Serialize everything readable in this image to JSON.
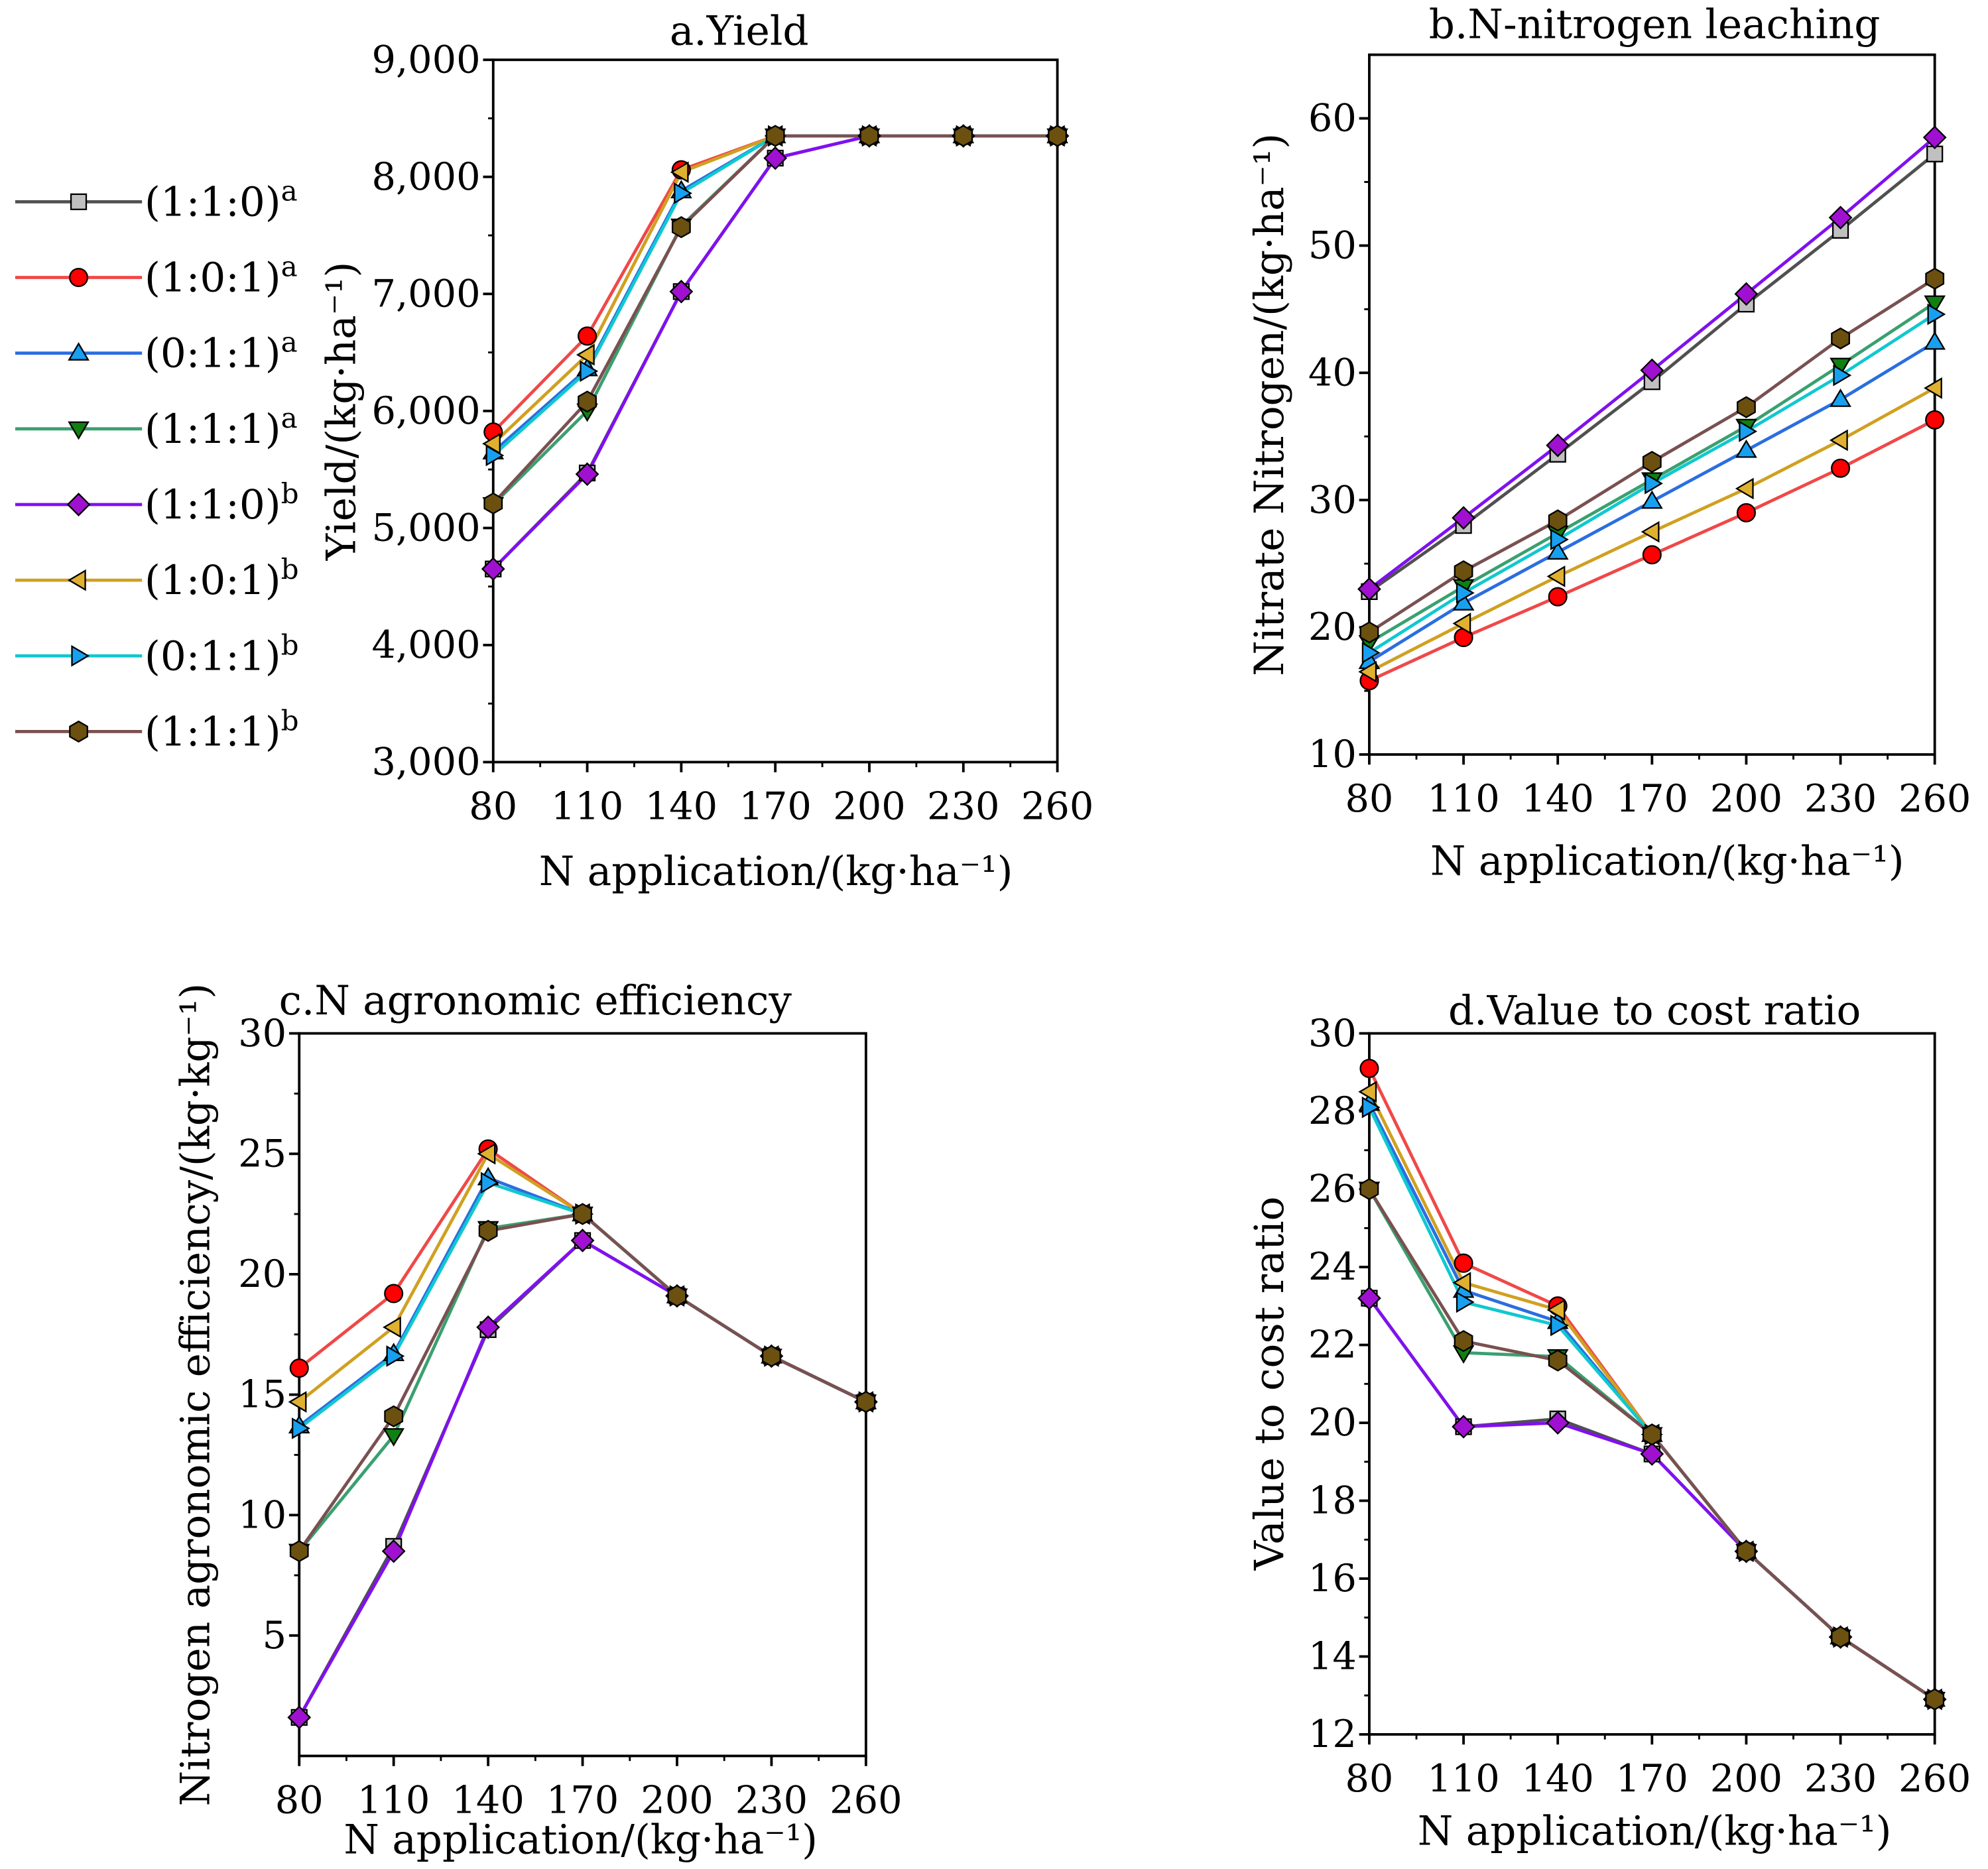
{
  "series_styles": [
    {
      "name": "(1:1:0)",
      "sup": "a",
      "marker": "square",
      "fill": "#c0c0c0",
      "line": "#505050"
    },
    {
      "name": "(1:0:1)",
      "sup": "a",
      "marker": "circle",
      "fill": "#ff0000",
      "line": "#f04848"
    },
    {
      "name": "(0:1:1)",
      "sup": "a",
      "marker": "triangle-up",
      "fill": "#18a0f0",
      "line": "#2a6ee0"
    },
    {
      "name": "(1:1:1)",
      "sup": "a",
      "marker": "triangle-down",
      "fill": "#108010",
      "line": "#3aa070"
    },
    {
      "name": "(1:1:0)",
      "sup": "b",
      "marker": "diamond",
      "fill": "#a010d0",
      "line": "#8010f0"
    },
    {
      "name": "(1:0:1)",
      "sup": "b",
      "marker": "triangle-left",
      "fill": "#e0b030",
      "line": "#d0a020"
    },
    {
      "name": "(0:1:1)",
      "sup": "b",
      "marker": "triangle-right",
      "fill": "#18a0f0",
      "line": "#10c8d0"
    },
    {
      "name": "(1:1:1)",
      "sup": "b",
      "marker": "hexagon",
      "fill": "#6b5010",
      "line": "#7a5050"
    }
  ],
  "chart_data": [
    {
      "type": "line",
      "title": "a.Yield",
      "xlabel": "N application/(kg·ha⁻¹)",
      "ylabel": "Yield/(kg·ha⁻¹)",
      "x": [
        80,
        110,
        140,
        170,
        200,
        230,
        260
      ],
      "xlim": [
        80,
        260
      ],
      "ylim": [
        3000,
        9000
      ],
      "yticks": [
        3000,
        4000,
        5000,
        6000,
        7000,
        8000,
        9000
      ],
      "ytick_labels": [
        "3,000",
        "4,000",
        "5,000",
        "6,000",
        "7,000",
        "8,000",
        "9,000"
      ],
      "series": [
        {
          "name": "(1:1:0)a",
          "values": [
            4650,
            5470,
            7020,
            8160,
            8350,
            8350,
            8350
          ]
        },
        {
          "name": "(1:0:1)a",
          "values": [
            5820,
            6640,
            8060,
            8350,
            8350,
            8350,
            8350
          ]
        },
        {
          "name": "(0:1:1)a",
          "values": [
            5650,
            6360,
            7880,
            8350,
            8350,
            8350,
            8350
          ]
        },
        {
          "name": "(1:1:1)a",
          "values": [
            5200,
            6000,
            7580,
            8350,
            8350,
            8350,
            8350
          ]
        },
        {
          "name": "(1:1:0)b",
          "values": [
            4650,
            5460,
            7020,
            8160,
            8350,
            8350,
            8350
          ]
        },
        {
          "name": "(1:0:1)b",
          "values": [
            5720,
            6480,
            8040,
            8350,
            8350,
            8350,
            8350
          ]
        },
        {
          "name": "(0:1:1)b",
          "values": [
            5620,
            6340,
            7860,
            8350,
            8350,
            8350,
            8350
          ]
        },
        {
          "name": "(1:1:1)b",
          "values": [
            5210,
            6080,
            7570,
            8350,
            8350,
            8350,
            8350
          ]
        }
      ]
    },
    {
      "type": "line",
      "title": "b.N-nitrogen leaching",
      "xlabel": "N application/(kg·ha⁻¹)",
      "ylabel": "Nitrate Nitrogen/(kg·ha⁻¹)",
      "x": [
        80,
        110,
        140,
        170,
        200,
        230,
        260
      ],
      "xlim": [
        80,
        260
      ],
      "ylim": [
        10,
        65
      ],
      "yticks": [
        10,
        20,
        30,
        40,
        50,
        60
      ],
      "ytick_labels": [
        "10",
        "20",
        "30",
        "40",
        "50",
        "60"
      ],
      "series": [
        {
          "name": "(1:1:0)a",
          "values": [
            22.8,
            28.0,
            33.6,
            39.3,
            45.4,
            51.2,
            57.2
          ]
        },
        {
          "name": "(1:0:1)a",
          "values": [
            15.8,
            19.2,
            22.4,
            25.7,
            29.0,
            32.5,
            36.3
          ]
        },
        {
          "name": "(0:1:1)a",
          "values": [
            17.3,
            21.9,
            25.9,
            29.9,
            33.9,
            37.9,
            42.4
          ]
        },
        {
          "name": "(1:1:1)a",
          "values": [
            18.8,
            23.2,
            27.4,
            31.6,
            35.8,
            40.6,
            45.5
          ]
        },
        {
          "name": "(1:1:0)b",
          "values": [
            23.0,
            28.6,
            34.3,
            40.2,
            46.2,
            52.2,
            58.5
          ]
        },
        {
          "name": "(1:0:1)b",
          "values": [
            16.5,
            20.3,
            24.0,
            27.5,
            30.9,
            34.7,
            38.8
          ]
        },
        {
          "name": "(0:1:1)b",
          "values": [
            18.0,
            22.7,
            26.9,
            31.3,
            35.4,
            39.8,
            44.6
          ]
        },
        {
          "name": "(1:1:1)b",
          "values": [
            19.6,
            24.4,
            28.4,
            33.0,
            37.3,
            42.7,
            47.4
          ]
        }
      ]
    },
    {
      "type": "line",
      "title": "c.N agronomic efficiency",
      "xlabel": "N application/(kg·ha⁻¹)",
      "ylabel": "Nitrogen agronomic efficiency/(kg·kg⁻¹)",
      "x": [
        80,
        110,
        140,
        170,
        200,
        230,
        260
      ],
      "xlim": [
        80,
        260
      ],
      "ylim": [
        0,
        30
      ],
      "yticks": [
        5,
        10,
        15,
        20,
        25,
        30
      ],
      "ytick_labels": [
        "5",
        "10",
        "15",
        "20",
        "25",
        "30"
      ],
      "series": [
        {
          "name": "(1:1:0)a",
          "values": [
            1.6,
            8.7,
            17.7,
            21.4,
            19.1,
            16.6,
            14.7
          ]
        },
        {
          "name": "(1:0:1)a",
          "values": [
            16.1,
            19.2,
            25.2,
            22.5,
            19.1,
            16.6,
            14.7
          ]
        },
        {
          "name": "(0:1:1)a",
          "values": [
            13.7,
            16.7,
            24.0,
            22.5,
            19.1,
            16.6,
            14.7
          ]
        },
        {
          "name": "(1:1:1)a",
          "values": [
            8.5,
            13.3,
            21.9,
            22.5,
            19.1,
            16.6,
            14.7
          ]
        },
        {
          "name": "(1:1:0)b",
          "values": [
            1.6,
            8.5,
            17.8,
            21.4,
            19.1,
            16.6,
            14.7
          ]
        },
        {
          "name": "(1:0:1)b",
          "values": [
            14.7,
            17.8,
            25.0,
            22.5,
            19.1,
            16.6,
            14.7
          ]
        },
        {
          "name": "(0:1:1)b",
          "values": [
            13.6,
            16.6,
            23.8,
            22.5,
            19.1,
            16.6,
            14.7
          ]
        },
        {
          "name": "(1:1:1)b",
          "values": [
            8.5,
            14.1,
            21.8,
            22.5,
            19.1,
            16.6,
            14.7
          ]
        }
      ]
    },
    {
      "type": "line",
      "title": "d.Value to cost ratio",
      "xlabel": "N application/(kg·ha⁻¹)",
      "ylabel": "Value to cost ratio",
      "x": [
        80,
        110,
        140,
        170,
        200,
        230,
        260
      ],
      "xlim": [
        80,
        260
      ],
      "ylim": [
        12,
        30
      ],
      "yticks": [
        12,
        14,
        16,
        18,
        20,
        22,
        24,
        26,
        28,
        30
      ],
      "ytick_labels": [
        "12",
        "14",
        "16",
        "18",
        "20",
        "22",
        "24",
        "26",
        "28",
        "30"
      ],
      "series": [
        {
          "name": "(1:1:0)a",
          "values": [
            23.2,
            19.9,
            20.1,
            19.2,
            16.7,
            14.5,
            12.9
          ]
        },
        {
          "name": "(1:0:1)a",
          "values": [
            29.1,
            24.1,
            23.0,
            19.7,
            16.7,
            14.5,
            12.9
          ]
        },
        {
          "name": "(0:1:1)a",
          "values": [
            28.2,
            23.4,
            22.6,
            19.7,
            16.7,
            14.5,
            12.9
          ]
        },
        {
          "name": "(1:1:1)a",
          "values": [
            26.0,
            21.8,
            21.7,
            19.7,
            16.7,
            14.5,
            12.9
          ]
        },
        {
          "name": "(1:1:0)b",
          "values": [
            23.2,
            19.9,
            20.0,
            19.2,
            16.7,
            14.5,
            12.9
          ]
        },
        {
          "name": "(1:0:1)b",
          "values": [
            28.5,
            23.6,
            22.9,
            19.7,
            16.7,
            14.5,
            12.9
          ]
        },
        {
          "name": "(0:1:1)b",
          "values": [
            28.1,
            23.1,
            22.5,
            19.7,
            16.7,
            14.5,
            12.9
          ]
        },
        {
          "name": "(1:1:1)b",
          "values": [
            26.0,
            22.1,
            21.6,
            19.7,
            16.7,
            14.5,
            12.9
          ]
        }
      ]
    }
  ]
}
